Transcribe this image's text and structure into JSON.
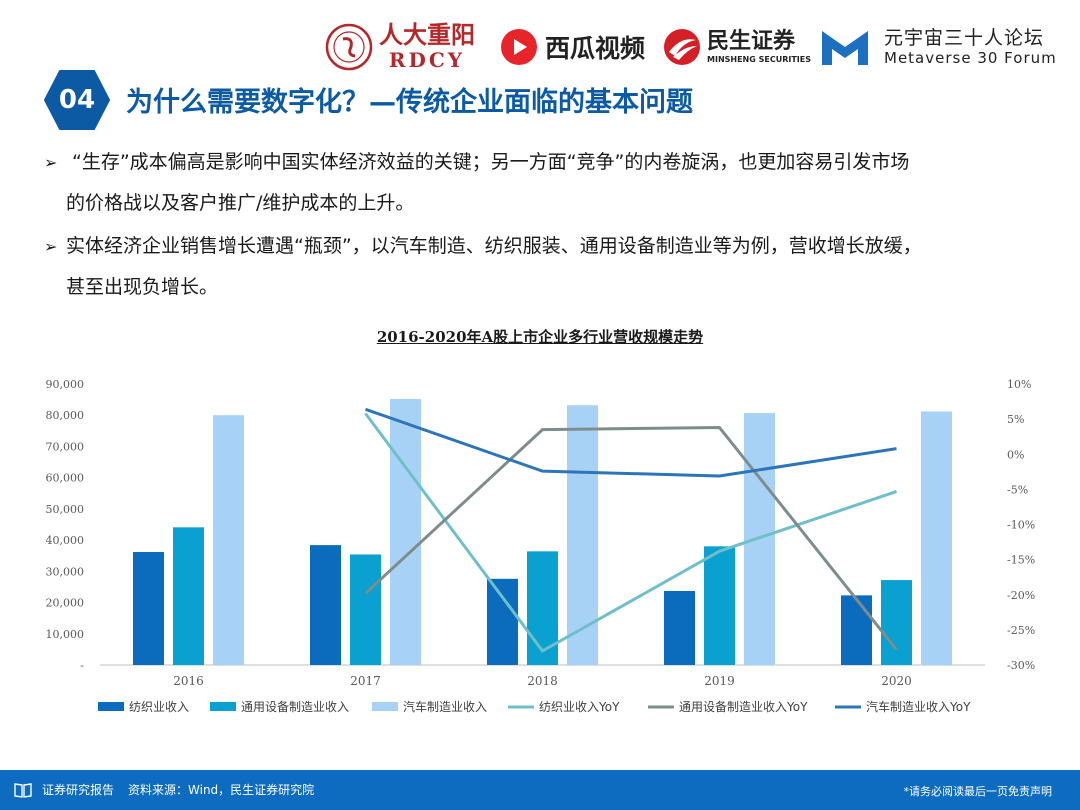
{
  "header": {
    "logos": [
      {
        "name": "renda-chongyang",
        "text": "人大重阳",
        "sub": "RDCY"
      },
      {
        "name": "xigua-video",
        "text": "西瓜视频"
      },
      {
        "name": "minsheng-securities",
        "text": "民生证券",
        "sub": "MINSHENG SECURITIES"
      },
      {
        "name": "metaverse-30-forum",
        "text": "元宇宙三十人论坛",
        "sub": "Metaverse 30 Forum"
      }
    ]
  },
  "section": {
    "number": "04",
    "title": "为什么需要数字化？—传统企业面临的基本问题"
  },
  "bullets": [
    {
      "line1": "“生存”成本偏高是影响中国实体经济效益的关键；另一方面“竞争”的内卷旋涡，也更加容易引发市场",
      "line2": "的价格战以及客户推广/维护成本的上升。"
    },
    {
      "line1": "实体经济企业销售增长遭遇“瓶颈”，以汽车制造、纺织服装、通用设备制造业等为例，营收增长放缓，",
      "line2": "甚至出现负增长。"
    }
  ],
  "chart_data": {
    "type": "bar",
    "title": "2016-2020年A股上市企业多行业营收规模走势",
    "categories": [
      "2016",
      "2017",
      "2018",
      "2019",
      "2020"
    ],
    "y_left": {
      "min": 0,
      "max": 90000,
      "ticks": [
        "-",
        "10,000",
        "20,000",
        "30,000",
        "40,000",
        "50,000",
        "60,000",
        "70,000",
        "80,000",
        "90,000"
      ]
    },
    "y_right": {
      "min": -30,
      "max": 10,
      "ticks": [
        "-30%",
        "-25%",
        "-20%",
        "-15%",
        "-10%",
        "-5%",
        "0%",
        "5%",
        "10%"
      ]
    },
    "bar_series": [
      {
        "name": "纺织业收入",
        "color": "#0b6bbd",
        "values": [
          36200,
          38400,
          27600,
          23700,
          22300
        ]
      },
      {
        "name": "通用设备制造业收入",
        "color": "#0aa0cf",
        "values": [
          44100,
          35400,
          36400,
          38000,
          27200
        ]
      },
      {
        "name": "汽车制造业收入",
        "color": "#a8d2f5",
        "values": [
          80000,
          85200,
          83200,
          80700,
          81200
        ]
      }
    ],
    "line_series": [
      {
        "name": "纺织业收入YoY",
        "color": "#6fbfca",
        "values": [
          null,
          5.8,
          -28.0,
          -13.8,
          -5.3
        ]
      },
      {
        "name": "通用设备制造业收入YoY",
        "color": "#7f8c8d",
        "values": [
          null,
          -19.8,
          3.5,
          3.8,
          -27.8
        ]
      },
      {
        "name": "汽车制造业收入YoY",
        "color": "#2b75b8",
        "values": [
          null,
          6.4,
          -2.4,
          -3.1,
          0.8
        ]
      }
    ]
  },
  "footer": {
    "left": "证券研究报告",
    "source": "资料来源：Wind，民生证券研究院",
    "right": "*请务必阅读最后一页免责声明"
  }
}
